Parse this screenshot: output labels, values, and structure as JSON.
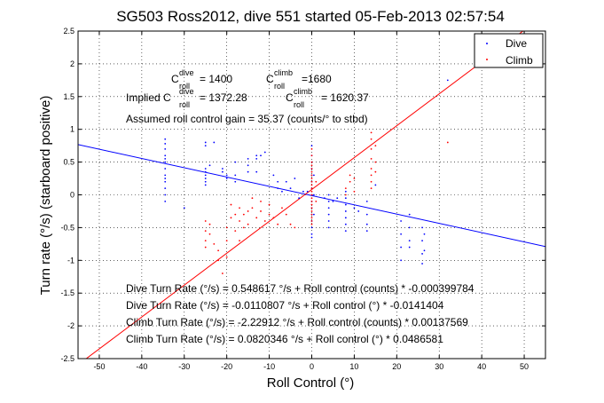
{
  "chart_data": {
    "type": "scatter",
    "title": "SG503 Ross2012, dive 551 started 05-Feb-2013 02:57:54",
    "xlabel": "Roll Control (°)",
    "ylabel": "Turn rate (°/s) (starboard positive)",
    "xlim": [
      -55,
      55
    ],
    "ylim": [
      -2.5,
      2.5
    ],
    "xticks": [
      -50,
      -40,
      -30,
      -20,
      -10,
      0,
      10,
      20,
      30,
      40,
      50
    ],
    "yticks": [
      -2.5,
      -2,
      -1.5,
      -1,
      -0.5,
      0,
      0.5,
      1,
      1.5,
      2,
      2.5
    ],
    "grid": true,
    "legend_position": "top-right",
    "series": [
      {
        "name": "Dive",
        "color": "#0000ff",
        "fit": {
          "intercept": -0.0110807,
          "slope": -0.0141404
        },
        "points": [
          [
            -34.5,
            0.85
          ],
          [
            -34.5,
            0.7
          ],
          [
            -34.5,
            0.6
          ],
          [
            -34.5,
            0.5
          ],
          [
            -34.5,
            0.4
          ],
          [
            -34.5,
            0.3
          ],
          [
            -34.5,
            0.2
          ],
          [
            -34.5,
            0.1
          ],
          [
            -34.5,
            0.0
          ],
          [
            -34.5,
            -0.1
          ],
          [
            -34.5,
            0.78
          ],
          [
            -34.5,
            0.55
          ],
          [
            -34.5,
            0.25
          ],
          [
            -30,
            -0.2
          ],
          [
            -25,
            0.4
          ],
          [
            -25,
            0.35
          ],
          [
            -25,
            0.3
          ],
          [
            -25,
            0.25
          ],
          [
            -25,
            0.2
          ],
          [
            -25,
            0.15
          ],
          [
            -25,
            0.8
          ],
          [
            -25,
            0.75
          ],
          [
            -24,
            0.45
          ],
          [
            -23,
            0.8
          ],
          [
            -21,
            0.4
          ],
          [
            -21,
            0.35
          ],
          [
            -20,
            0.3
          ],
          [
            -20,
            0.25
          ],
          [
            -18,
            0.5
          ],
          [
            -18,
            0.3
          ],
          [
            -18,
            0.2
          ],
          [
            -15,
            0.55
          ],
          [
            -15,
            0.45
          ],
          [
            -15,
            0.35
          ],
          [
            -13,
            0.6
          ],
          [
            -13,
            0.55
          ],
          [
            -13,
            0.35
          ],
          [
            -12,
            0.6
          ],
          [
            -11,
            0.65
          ],
          [
            -9,
            0.3
          ],
          [
            -8,
            0.2
          ],
          [
            -8,
            0.1
          ],
          [
            -7,
            0.05
          ],
          [
            -6,
            0.2
          ],
          [
            -5,
            0.1
          ],
          [
            -4,
            0.25
          ],
          [
            -3,
            -0.05
          ],
          [
            -2,
            0.05
          ],
          [
            -1,
            0.05
          ],
          [
            0,
            0.75
          ],
          [
            0,
            0.6
          ],
          [
            0,
            0.5
          ],
          [
            0,
            0.4
          ],
          [
            0,
            0.3
          ],
          [
            0,
            0.2
          ],
          [
            0,
            0.1
          ],
          [
            0,
            0.0
          ],
          [
            0,
            -0.1
          ],
          [
            0,
            -0.2
          ],
          [
            0,
            -0.3
          ],
          [
            0,
            -0.4
          ],
          [
            0,
            -0.5
          ],
          [
            0,
            -0.6
          ],
          [
            0,
            -0.65
          ],
          [
            0.5,
            0.3
          ],
          [
            0.5,
            0.0
          ],
          [
            0.5,
            -0.3
          ],
          [
            3,
            -0.05
          ],
          [
            4,
            0.0
          ],
          [
            4,
            -0.1
          ],
          [
            4,
            -0.2
          ],
          [
            4,
            -0.3
          ],
          [
            4,
            -0.4
          ],
          [
            4,
            -0.5
          ],
          [
            5,
            -0.1
          ],
          [
            6,
            -0.05
          ],
          [
            8,
            0.05
          ],
          [
            8,
            -0.05
          ],
          [
            8,
            -0.15
          ],
          [
            8,
            -0.25
          ],
          [
            8,
            -0.35
          ],
          [
            8,
            -0.45
          ],
          [
            8,
            -0.55
          ],
          [
            10,
            -0.2
          ],
          [
            11,
            -0.25
          ],
          [
            13,
            -0.1
          ],
          [
            13,
            -0.3
          ],
          [
            13,
            -0.45
          ],
          [
            13,
            -0.55
          ],
          [
            15,
            0.15
          ],
          [
            21,
            -0.4
          ],
          [
            21,
            -0.6
          ],
          [
            21,
            -0.8
          ],
          [
            21,
            -1.0
          ],
          [
            23,
            -0.3
          ],
          [
            23,
            -0.5
          ],
          [
            23,
            -0.7
          ],
          [
            23,
            -0.8
          ],
          [
            26,
            -0.5
          ],
          [
            26,
            -0.7
          ],
          [
            26,
            -0.9
          ],
          [
            26,
            -1.05
          ],
          [
            26.5,
            -0.6
          ],
          [
            26.5,
            -0.85
          ],
          [
            32,
            1.75
          ]
        ]
      },
      {
        "name": "Climb",
        "color": "#ff0000",
        "fit": {
          "intercept": 0.0820346,
          "slope": 0.0486581
        },
        "points": [
          [
            -25,
            -0.4
          ],
          [
            -25,
            -0.55
          ],
          [
            -25,
            -0.7
          ],
          [
            -25,
            -0.8
          ],
          [
            -24,
            -0.45
          ],
          [
            -24,
            -0.6
          ],
          [
            -23,
            -0.75
          ],
          [
            -22,
            -0.85
          ],
          [
            -22,
            -1.0
          ],
          [
            -21,
            -1.2
          ],
          [
            -20,
            -0.5
          ],
          [
            -20,
            -0.7
          ],
          [
            -19,
            -0.15
          ],
          [
            -19,
            -0.35
          ],
          [
            -18,
            -0.3
          ],
          [
            -18,
            -0.55
          ],
          [
            -17,
            -0.2
          ],
          [
            -17,
            -0.4
          ],
          [
            -16,
            -0.3
          ],
          [
            -16,
            -0.5
          ],
          [
            -15,
            -0.25
          ],
          [
            -15,
            -0.45
          ],
          [
            -14,
            -0.05
          ],
          [
            -14,
            -0.2
          ],
          [
            -13,
            -0.35
          ],
          [
            -12,
            -0.1
          ],
          [
            -12,
            -0.25
          ],
          [
            -11,
            -0.4
          ],
          [
            -10,
            -0.15
          ],
          [
            -10,
            -0.3
          ],
          [
            -9,
            -0.35
          ],
          [
            -8,
            -0.45
          ],
          [
            -7,
            -0.2
          ],
          [
            -6,
            -0.3
          ],
          [
            -5,
            -0.45
          ],
          [
            -4,
            -0.5
          ],
          [
            -20,
            -0.95
          ],
          [
            -17,
            -0.7
          ],
          [
            0,
            0.7
          ],
          [
            0,
            0.6
          ],
          [
            0,
            0.5
          ],
          [
            0,
            0.45
          ],
          [
            0,
            0.4
          ],
          [
            0,
            0.35
          ],
          [
            0,
            0.3
          ],
          [
            0,
            0.25
          ],
          [
            0,
            0.2
          ],
          [
            0,
            0.15
          ],
          [
            0,
            0.1
          ],
          [
            0,
            0.05
          ],
          [
            0,
            0.0
          ],
          [
            0,
            -0.05
          ],
          [
            0,
            -0.1
          ],
          [
            0,
            -0.15
          ],
          [
            0,
            -0.2
          ],
          [
            0,
            -0.25
          ],
          [
            0,
            -0.3
          ],
          [
            0,
            -0.35
          ],
          [
            0,
            -0.4
          ],
          [
            0,
            -0.45
          ],
          [
            1,
            0.2
          ],
          [
            1,
            -0.1
          ],
          [
            8,
            0.0
          ],
          [
            8,
            0.1
          ],
          [
            9,
            0.2
          ],
          [
            9,
            0.3
          ],
          [
            10,
            0.05
          ],
          [
            10,
            0.25
          ],
          [
            14,
            0.95
          ],
          [
            14,
            0.85
          ],
          [
            14,
            0.7
          ],
          [
            14,
            0.55
          ],
          [
            14,
            0.4
          ],
          [
            14,
            0.3
          ],
          [
            14,
            0.2
          ],
          [
            14,
            0.1
          ],
          [
            15,
            0.75
          ],
          [
            15,
            0.5
          ],
          [
            15,
            0.35
          ],
          [
            32,
            0.8
          ]
        ]
      }
    ],
    "annotations": {
      "c_dive_label": "C",
      "c_dive_sup": "dive",
      "c_dive_sub": "roll",
      "c_dive_value": "= 1400",
      "c_climb_label": "C",
      "c_climb_sup": "climb",
      "c_climb_sub": "roll",
      "c_climb_value": "=1680",
      "implied_prefix": "Implied C",
      "implied_dive_sup": "dive",
      "implied_dive_sub": "roll",
      "implied_dive_value": "= 1372.28",
      "implied_climb_label": "C",
      "implied_climb_sup": "climb",
      "implied_climb_sub": "roll",
      "implied_climb_value": "= 1620.37",
      "gain": "Assumed roll control gain = 35.37 (counts/° to stbd)",
      "fit1": "Dive Turn Rate (°/s) = 0.548617 °/s + Roll control (counts) * -0.000399784",
      "fit2": "Dive Turn Rate (°/s) = -0.0110807 °/s + Roll control (°) * -0.0141404",
      "fit3": "Climb Turn Rate (°/s) = -2.22912 °/s + Roll control (counts) * 0.00137569",
      "fit4": "Climb Turn Rate (°/s) = 0.0820346 °/s + Roll control (°) * 0.0486581"
    }
  }
}
